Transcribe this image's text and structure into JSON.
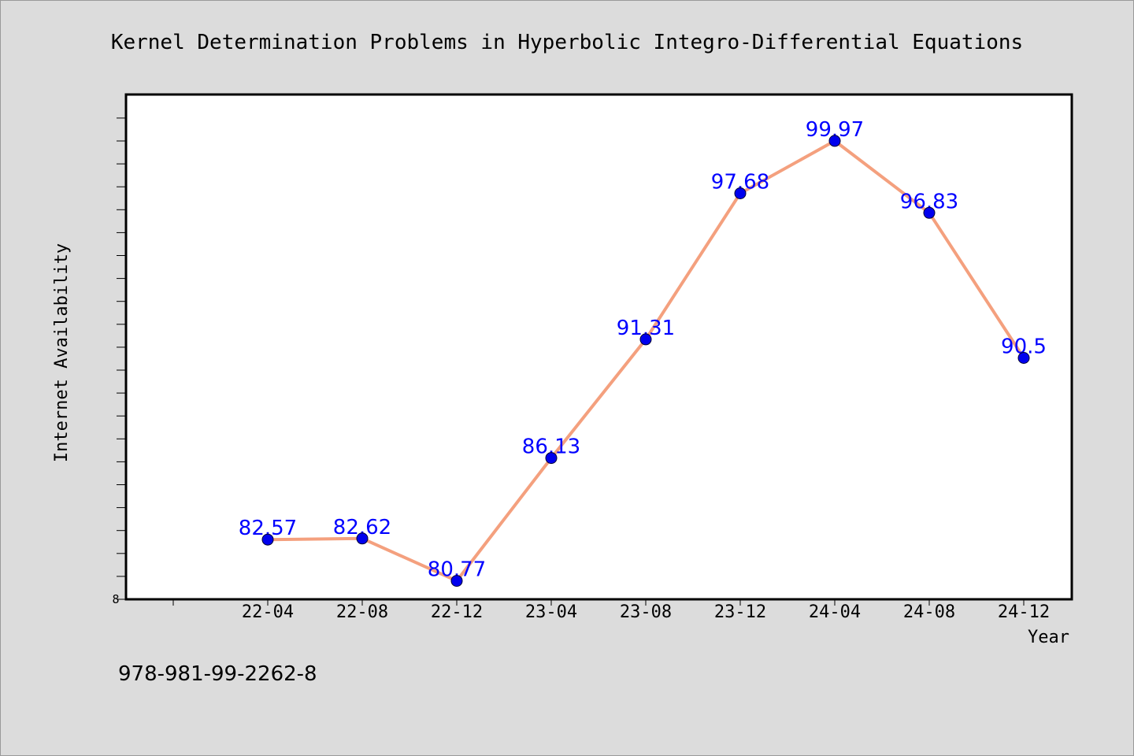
{
  "chart_data": {
    "type": "line",
    "title": "Kernel Determination Problems in Hyperbolic Integro-Differential Equations",
    "xlabel": "Year",
    "ylabel": "Internet Availability",
    "categories": [
      "22-04",
      "22-08",
      "22-12",
      "23-04",
      "23-08",
      "23-12",
      "24-04",
      "24-08",
      "24-12"
    ],
    "series": [
      {
        "values": [
          82.57,
          82.62,
          80.77,
          86.13,
          91.31,
          97.68,
          99.97,
          96.83,
          90.5
        ],
        "labels": [
          "82.57",
          "82.62",
          "80.77",
          "86.13",
          "91.31",
          "97.68",
          "99.97",
          "96.83",
          "90.5"
        ],
        "line_color": "#f4a07e",
        "marker_color": "#0000ee",
        "label_color": "#0000ff"
      }
    ],
    "ylim": [
      80,
      102
    ],
    "y_tick_label": "8",
    "grid": false,
    "legend": "none"
  },
  "footer": {
    "isbn": "978-981-99-2262-8"
  },
  "colors": {
    "background": "#dcdcdc",
    "plot_background": "#ffffff",
    "axis": "#000000"
  }
}
